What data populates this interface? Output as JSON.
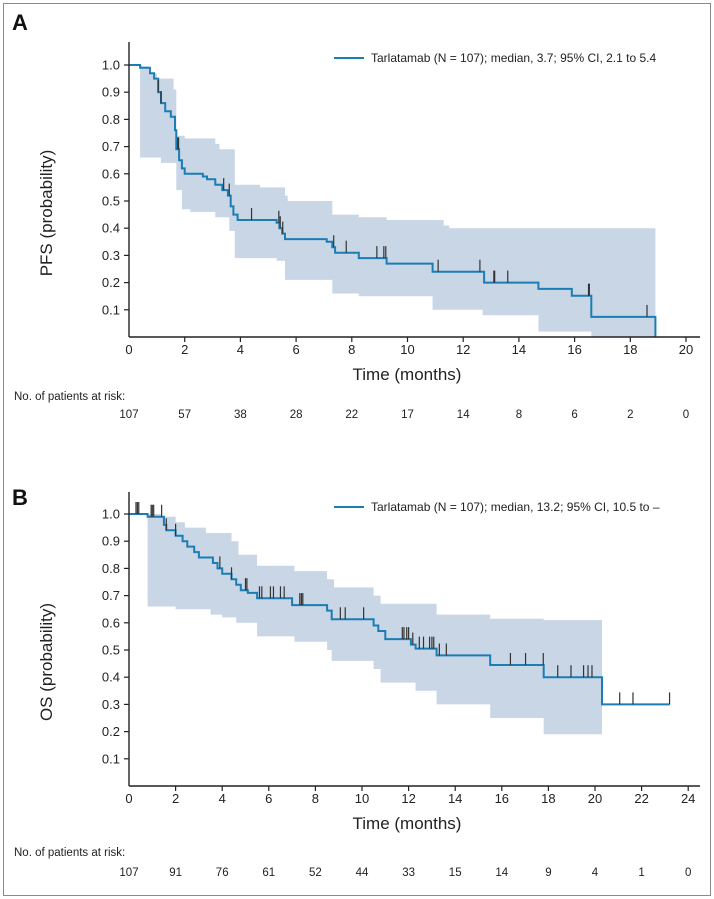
{
  "chart_data": [
    {
      "panel": "A",
      "type": "line",
      "xlabel": "Time (months)",
      "ylabel": "PFS (probability)",
      "xlim": [
        0,
        20
      ],
      "xticks": [
        0,
        2,
        4,
        6,
        8,
        10,
        12,
        14,
        16,
        18,
        20
      ],
      "ylim": [
        0,
        1.0
      ],
      "yticks": [
        0.1,
        0.2,
        0.3,
        0.4,
        0.5,
        0.6,
        0.7,
        0.8,
        0.9,
        1.0
      ],
      "ytick_labels": [
        "0.1",
        "0.2",
        "0.3",
        "0.4",
        "0.5",
        "0.6",
        "0.7",
        "0.8",
        "0.9",
        "1.0"
      ],
      "grid": false,
      "legend_position": "top-right",
      "colors": {
        "curve": "#1b7db4",
        "ci_band": "#c9d6e6",
        "censor": "#333333"
      },
      "series": [
        {
          "name": "Tarlatamab (N = 107); median, 3.7; 95% CI, 2.1 to 5.4",
          "end": 18.9,
          "steps": [
            [
              0,
              1.0
            ],
            [
              0.4,
              0.99
            ],
            [
              0.75,
              0.97
            ],
            [
              0.9,
              0.95
            ],
            [
              1.05,
              0.9
            ],
            [
              1.15,
              0.86
            ],
            [
              1.3,
              0.83
            ],
            [
              1.5,
              0.81
            ],
            [
              1.65,
              0.76
            ],
            [
              1.7,
              0.69
            ],
            [
              1.8,
              0.65
            ],
            [
              1.9,
              0.62
            ],
            [
              2.0,
              0.6
            ],
            [
              2.65,
              0.59
            ],
            [
              2.8,
              0.58
            ],
            [
              3.1,
              0.56
            ],
            [
              3.35,
              0.54
            ],
            [
              3.55,
              0.52
            ],
            [
              3.65,
              0.48
            ],
            [
              3.75,
              0.45
            ],
            [
              3.9,
              0.43
            ],
            [
              5.3,
              0.42
            ],
            [
              5.4,
              0.4
            ],
            [
              5.5,
              0.38
            ],
            [
              5.6,
              0.36
            ],
            [
              7.1,
              0.35
            ],
            [
              7.3,
              0.33
            ],
            [
              7.4,
              0.31
            ],
            [
              8.25,
              0.29
            ],
            [
              9.25,
              0.27
            ],
            [
              10.9,
              0.24
            ],
            [
              12.75,
              0.2
            ],
            [
              14.7,
              0.177
            ],
            [
              15.9,
              0.152
            ],
            [
              16.6,
              0.074
            ],
            [
              18.9,
              0.0
            ]
          ],
          "ci_upper": [
            [
              0,
              1.0
            ],
            [
              0.45,
              0.995
            ],
            [
              0.7,
              0.97
            ],
            [
              1.0,
              0.95
            ],
            [
              1.6,
              0.91
            ],
            [
              1.7,
              0.74
            ],
            [
              2.0,
              0.73
            ],
            [
              3.1,
              0.71
            ],
            [
              3.25,
              0.69
            ],
            [
              3.8,
              0.56
            ],
            [
              4.7,
              0.55
            ],
            [
              5.6,
              0.52
            ],
            [
              5.7,
              0.5
            ],
            [
              7.3,
              0.45
            ],
            [
              8.25,
              0.44
            ],
            [
              9.25,
              0.43
            ],
            [
              11.3,
              0.41
            ],
            [
              11.5,
              0.4
            ]
          ],
          "ci_lower": [
            [
              0,
              1.0
            ],
            [
              0.4,
              0.66
            ],
            [
              1.15,
              0.64
            ],
            [
              1.7,
              0.54
            ],
            [
              1.9,
              0.47
            ],
            [
              2.2,
              0.46
            ],
            [
              3.1,
              0.44
            ],
            [
              3.6,
              0.39
            ],
            [
              3.8,
              0.29
            ],
            [
              5.3,
              0.28
            ],
            [
              5.6,
              0.21
            ],
            [
              7.3,
              0.16
            ],
            [
              8.25,
              0.15
            ],
            [
              10.9,
              0.1
            ],
            [
              12.7,
              0.08
            ],
            [
              14.7,
              0.02
            ],
            [
              16.6,
              0.0
            ]
          ],
          "censored": [
            1.05,
            1.15,
            1.75,
            1.78,
            3.4,
            3.6,
            4.4,
            5.38,
            5.43,
            5.52,
            7.35,
            7.8,
            8.9,
            9.15,
            9.22,
            11.1,
            12.6,
            13.1,
            13.13,
            13.6,
            16.5,
            16.53,
            18.6
          ]
        }
      ],
      "risk_table": {
        "label": "No. of patients at risk:",
        "times": [
          0,
          2,
          4,
          6,
          8,
          10,
          12,
          14,
          16,
          18,
          20
        ],
        "values": [
          107,
          57,
          38,
          28,
          22,
          17,
          14,
          8,
          6,
          2,
          0
        ]
      }
    },
    {
      "panel": "B",
      "type": "line",
      "xlabel": "Time (months)",
      "ylabel": "OS (probability)",
      "xlim": [
        0,
        24
      ],
      "xticks": [
        0,
        2,
        4,
        6,
        8,
        10,
        12,
        14,
        16,
        18,
        20,
        22,
        24
      ],
      "ylim": [
        0,
        1.0
      ],
      "yticks": [
        0.1,
        0.2,
        0.3,
        0.4,
        0.5,
        0.6,
        0.7,
        0.8,
        0.9,
        1.0
      ],
      "ytick_labels": [
        "0.1",
        "0.2",
        "0.3",
        "0.4",
        "0.5",
        "0.6",
        "0.7",
        "0.8",
        "0.9",
        "1.0"
      ],
      "grid": false,
      "legend_position": "top-right",
      "colors": {
        "curve": "#1b7db4",
        "ci_band": "#c9d6e6",
        "censor": "#333333"
      },
      "series": [
        {
          "name": "Tarlatamab (N = 107); median, 13.2; 95% CI, 10.5 to –",
          "end": 23.2,
          "ci_end": 20.3,
          "steps": [
            [
              0,
              1.0
            ],
            [
              0.8,
              0.99
            ],
            [
              1.5,
              0.96
            ],
            [
              1.6,
              0.94
            ],
            [
              2.0,
              0.92
            ],
            [
              2.3,
              0.9
            ],
            [
              2.5,
              0.88
            ],
            [
              2.8,
              0.86
            ],
            [
              3.0,
              0.84
            ],
            [
              3.6,
              0.82
            ],
            [
              3.8,
              0.8
            ],
            [
              4.0,
              0.78
            ],
            [
              4.4,
              0.76
            ],
            [
              4.6,
              0.74
            ],
            [
              4.8,
              0.72
            ],
            [
              5.1,
              0.71
            ],
            [
              5.5,
              0.69
            ],
            [
              7.0,
              0.665
            ],
            [
              8.5,
              0.645
            ],
            [
              8.7,
              0.613
            ],
            [
              10.5,
              0.59
            ],
            [
              10.7,
              0.57
            ],
            [
              11.0,
              0.54
            ],
            [
              12.1,
              0.52
            ],
            [
              12.3,
              0.505
            ],
            [
              13.2,
              0.48
            ],
            [
              15.5,
              0.445
            ],
            [
              17.8,
              0.4
            ],
            [
              20.3,
              0.3
            ]
          ],
          "ci_upper": [
            [
              0,
              1.0
            ],
            [
              1.4,
              0.99
            ],
            [
              2.0,
              0.97
            ],
            [
              2.4,
              0.95
            ],
            [
              3.3,
              0.93
            ],
            [
              4.4,
              0.9
            ],
            [
              4.7,
              0.85
            ],
            [
              5.5,
              0.81
            ],
            [
              7.1,
              0.79
            ],
            [
              8.5,
              0.76
            ],
            [
              8.8,
              0.73
            ],
            [
              10.5,
              0.7
            ],
            [
              10.8,
              0.67
            ],
            [
              13.2,
              0.63
            ],
            [
              15.5,
              0.615
            ],
            [
              17.8,
              0.61
            ]
          ],
          "ci_lower": [
            [
              0,
              1.0
            ],
            [
              0.8,
              0.66
            ],
            [
              2.0,
              0.65
            ],
            [
              3.5,
              0.63
            ],
            [
              4.0,
              0.62
            ],
            [
              4.6,
              0.6
            ],
            [
              5.5,
              0.55
            ],
            [
              7.1,
              0.53
            ],
            [
              8.5,
              0.5
            ],
            [
              8.7,
              0.46
            ],
            [
              10.5,
              0.43
            ],
            [
              10.8,
              0.38
            ],
            [
              12.3,
              0.35
            ],
            [
              13.2,
              0.3
            ],
            [
              15.5,
              0.25
            ],
            [
              17.8,
              0.19
            ]
          ],
          "censored": [
            0.3,
            0.36,
            0.42,
            0.95,
            1.0,
            1.06,
            1.4,
            1.6,
            2.0,
            3.9,
            4.4,
            5.0,
            5.06,
            5.6,
            5.7,
            6.07,
            6.2,
            6.5,
            6.66,
            7.33,
            7.4,
            7.46,
            9.07,
            9.28,
            10.07,
            11.73,
            11.8,
            11.92,
            12.0,
            12.18,
            12.46,
            12.64,
            12.9,
            13.0,
            13.08,
            13.32,
            13.62,
            16.37,
            17.02,
            17.78,
            18.4,
            18.97,
            19.51,
            19.7,
            19.87,
            21.06,
            21.63,
            23.2
          ]
        }
      ],
      "risk_table": {
        "label": "No. of patients at risk:",
        "times": [
          0,
          2,
          4,
          6,
          8,
          10,
          12,
          14,
          16,
          18,
          20,
          22,
          24
        ],
        "values": [
          107,
          91,
          76,
          61,
          52,
          44,
          33,
          15,
          14,
          9,
          4,
          1,
          0
        ]
      }
    }
  ]
}
